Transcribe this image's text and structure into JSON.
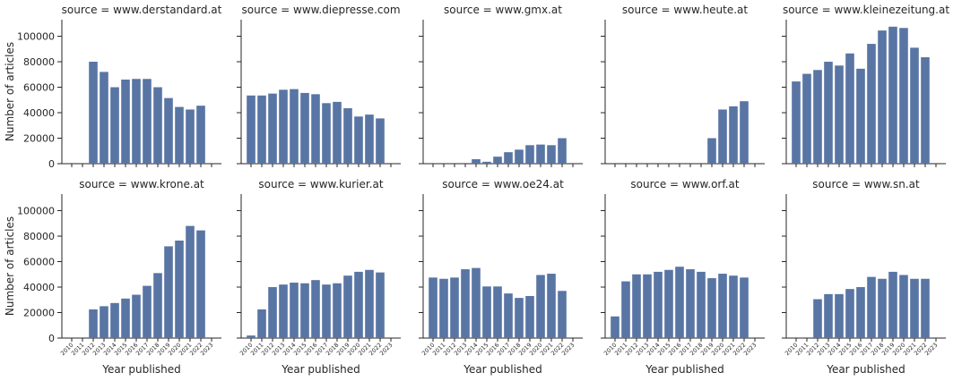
{
  "chart_data": {
    "type": "bar",
    "layout": "facet-grid",
    "xlabel": "Year published",
    "ylabel": "Number of articles",
    "title_prefix": "source = ",
    "categories": [
      "2010",
      "2011",
      "2012",
      "2013",
      "2014",
      "2015",
      "2016",
      "2017",
      "2018",
      "2019",
      "2020",
      "2021",
      "2022",
      "2023"
    ],
    "ylim": [
      0,
      113000
    ],
    "yticks": [
      0,
      20000,
      40000,
      60000,
      80000,
      100000
    ],
    "bar_color": "#5875a4",
    "grid": false,
    "panels": [
      {
        "source": "www.derstandard.at",
        "values": [
          0,
          0,
          80000,
          72000,
          60000,
          66000,
          66500,
          66500,
          60000,
          51500,
          44500,
          42500,
          45500,
          0
        ]
      },
      {
        "source": "www.diepresse.com",
        "values": [
          53500,
          53500,
          55000,
          58000,
          58500,
          55500,
          54500,
          47500,
          48500,
          43500,
          37000,
          38500,
          35500,
          0
        ]
      },
      {
        "source": "www.gmx.at",
        "values": [
          0,
          0,
          0,
          0,
          3500,
          1500,
          5500,
          9000,
          11000,
          14500,
          15000,
          14500,
          20000,
          0
        ]
      },
      {
        "source": "www.heute.at",
        "values": [
          0,
          0,
          0,
          0,
          0,
          0,
          0,
          0,
          0,
          20000,
          42500,
          45000,
          49000,
          0
        ]
      },
      {
        "source": "www.kleinezeitung.at",
        "values": [
          64500,
          70500,
          73500,
          80000,
          77000,
          86500,
          74500,
          94000,
          104500,
          107500,
          106500,
          91000,
          83500,
          0
        ]
      },
      {
        "source": "www.krone.at",
        "values": [
          0,
          0,
          22500,
          25000,
          27500,
          31000,
          34000,
          41000,
          51000,
          72000,
          76500,
          88000,
          84500,
          0
        ]
      },
      {
        "source": "www.kurier.at",
        "values": [
          2000,
          22500,
          40000,
          42000,
          43500,
          43000,
          45500,
          42000,
          43000,
          49000,
          52000,
          53500,
          51500,
          0
        ]
      },
      {
        "source": "www.oe24.at",
        "values": [
          47500,
          46500,
          47500,
          54000,
          55000,
          40500,
          40500,
          35000,
          31500,
          33000,
          49500,
          50500,
          37000,
          0
        ]
      },
      {
        "source": "www.orf.at",
        "values": [
          17000,
          44500,
          50000,
          50000,
          52000,
          53500,
          56000,
          54000,
          52000,
          47000,
          50500,
          49000,
          47500,
          0
        ]
      },
      {
        "source": "www.sn.at",
        "values": [
          0,
          0,
          30500,
          34500,
          34500,
          38500,
          40000,
          48000,
          46500,
          52000,
          49500,
          46500,
          46500,
          0
        ]
      }
    ]
  }
}
